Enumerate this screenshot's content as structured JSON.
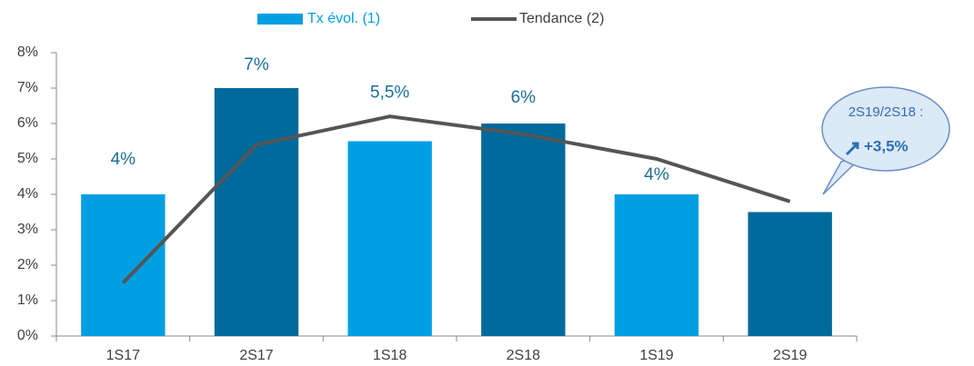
{
  "chart_data": {
    "type": "bar",
    "categories": [
      "1S17",
      "2S17",
      "1S18",
      "2S18",
      "1S19",
      "2S19"
    ],
    "series": [
      {
        "name": "Tx évol. (1)",
        "type": "bar",
        "colors": [
          "#009fe3",
          "#006a9c",
          "#009fe3",
          "#006a9c",
          "#009fe3",
          "#006a9c"
        ],
        "color": "#009fe3",
        "values": [
          4,
          7,
          5.5,
          6,
          4,
          3.5
        ],
        "value_labels": [
          "4%",
          "7%",
          "5,5%",
          "6%",
          "4%",
          null
        ]
      },
      {
        "name": "Tendance (2)",
        "type": "line",
        "color": "#555555",
        "values": [
          1.5,
          5.4,
          6.2,
          5.7,
          5.0,
          3.8
        ]
      }
    ],
    "ylim": [
      0,
      8
    ],
    "yticks": [
      {
        "value": 0,
        "label": "0%"
      },
      {
        "value": 1,
        "label": "1%"
      },
      {
        "value": 2,
        "label": "2%"
      },
      {
        "value": 3,
        "label": "3%"
      },
      {
        "value": 4,
        "label": "4%"
      },
      {
        "value": 5,
        "label": "5%"
      },
      {
        "value": 6,
        "label": "6%"
      },
      {
        "value": 7,
        "label": "7%"
      },
      {
        "value": 8,
        "label": "8%"
      }
    ],
    "legend": "top",
    "annotation": {
      "line1": "2S19/2S18 :",
      "line2": "+3,5%"
    }
  }
}
